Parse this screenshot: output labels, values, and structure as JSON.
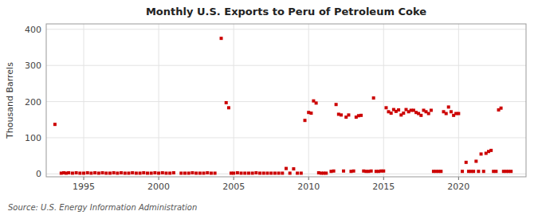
{
  "chart_data": {
    "type": "scatter",
    "title": "Monthly U.S. Exports to Peru of Petroleum Coke",
    "ylabel": "Thousand Barrels",
    "source": "Source: U.S. Energy Information Administration",
    "color": "#cc0000",
    "marker": "square",
    "grid": true,
    "xlim": [
      1992.5,
      2024.5
    ],
    "ylim": [
      -8,
      415
    ],
    "xticks": [
      1995,
      2000,
      2005,
      2010,
      2015,
      2020
    ],
    "yticks": [
      0,
      100,
      200,
      300,
      400
    ],
    "x": [
      1993.08,
      1993.5,
      1993.67,
      1993.83,
      1994.0,
      1994.25,
      1994.5,
      1994.75,
      1995.0,
      1995.25,
      1995.5,
      1995.75,
      1996.0,
      1996.25,
      1996.5,
      1996.75,
      1997.0,
      1997.25,
      1997.5,
      1997.75,
      1998.0,
      1998.25,
      1998.5,
      1998.75,
      1999.0,
      1999.25,
      1999.5,
      1999.75,
      2000.0,
      2000.25,
      2000.5,
      2000.75,
      2001.0,
      2001.5,
      2001.75,
      2002.0,
      2002.25,
      2002.5,
      2002.75,
      2003.0,
      2003.25,
      2003.5,
      2003.75,
      2004.17,
      2004.5,
      2004.67,
      2004.83,
      2005.0,
      2005.25,
      2005.5,
      2005.75,
      2006.0,
      2006.25,
      2006.5,
      2006.75,
      2007.0,
      2007.25,
      2007.5,
      2007.75,
      2008.0,
      2008.25,
      2008.5,
      2008.75,
      2009.0,
      2009.25,
      2009.5,
      2009.75,
      2010.0,
      2010.17,
      2010.33,
      2010.5,
      2010.67,
      2010.83,
      2011.0,
      2011.17,
      2011.5,
      2011.67,
      2011.83,
      2012.0,
      2012.17,
      2012.33,
      2012.5,
      2012.67,
      2012.83,
      2013.0,
      2013.17,
      2013.33,
      2013.5,
      2013.67,
      2013.83,
      2014.0,
      2014.17,
      2014.33,
      2014.5,
      2014.67,
      2014.83,
      2015.0,
      2015.17,
      2015.33,
      2015.5,
      2015.67,
      2015.83,
      2016.0,
      2016.17,
      2016.33,
      2016.5,
      2016.67,
      2016.83,
      2017.0,
      2017.17,
      2017.33,
      2017.5,
      2017.67,
      2017.83,
      2018.0,
      2018.17,
      2018.33,
      2018.5,
      2018.67,
      2018.83,
      2019.0,
      2019.17,
      2019.33,
      2019.5,
      2019.67,
      2019.83,
      2020.0,
      2020.25,
      2020.5,
      2020.67,
      2020.83,
      2021.0,
      2021.17,
      2021.33,
      2021.5,
      2021.67,
      2021.83,
      2022.0,
      2022.17,
      2022.33,
      2022.5,
      2022.67,
      2022.83,
      2023.0,
      2023.17,
      2023.33,
      2023.5
    ],
    "values": [
      137,
      2,
      3,
      2,
      3,
      2,
      3,
      2,
      2,
      3,
      2,
      3,
      2,
      3,
      2,
      2,
      3,
      2,
      3,
      2,
      2,
      3,
      2,
      2,
      3,
      2,
      2,
      3,
      2,
      3,
      2,
      2,
      3,
      2,
      2,
      2,
      3,
      2,
      2,
      2,
      3,
      2,
      2,
      375,
      197,
      183,
      2,
      2,
      3,
      2,
      2,
      2,
      2,
      3,
      2,
      2,
      2,
      2,
      2,
      2,
      2,
      15,
      2,
      14,
      2,
      2,
      148,
      170,
      168,
      202,
      196,
      3,
      2,
      2,
      2,
      7,
      8,
      192,
      165,
      163,
      8,
      157,
      163,
      7,
      8,
      157,
      161,
      162,
      8,
      7,
      7,
      8,
      210,
      7,
      7,
      8,
      8,
      183,
      172,
      168,
      178,
      173,
      177,
      163,
      168,
      178,
      172,
      176,
      176,
      170,
      167,
      162,
      176,
      172,
      167,
      176,
      7,
      7,
      7,
      7,
      172,
      167,
      185,
      172,
      162,
      167,
      167,
      7,
      32,
      7,
      7,
      7,
      35,
      7,
      55,
      7,
      57,
      62,
      65,
      7,
      7,
      177,
      182,
      7,
      7,
      7,
      7
    ]
  }
}
